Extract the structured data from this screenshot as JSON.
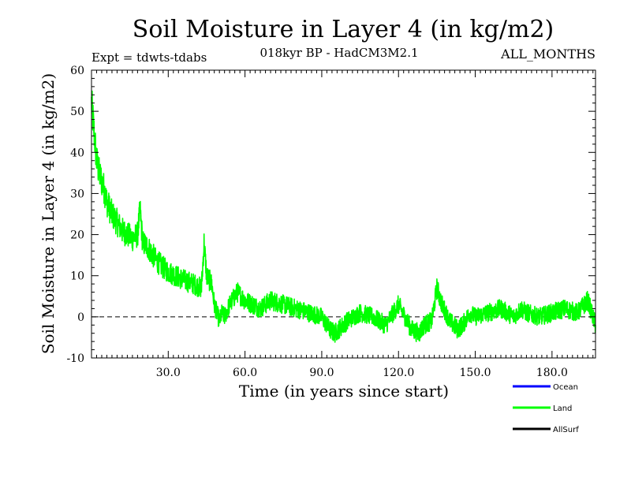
{
  "chart_data": {
    "type": "line",
    "title": "Soil Moisture in Layer 4 (in kg/m2)",
    "subtitle": "018kyr BP - HadCM3M2.1",
    "experiment_label": "Expt = tdwts-tdabs",
    "months_label": "ALL_MONTHS",
    "xlabel": "Time (in years since start)",
    "ylabel": "Soil Moisture in Layer 4 (in kg/m2)",
    "xlim": [
      0,
      197
    ],
    "ylim": [
      -10,
      60
    ],
    "x_ticks": [
      30,
      60,
      90,
      120,
      150,
      180
    ],
    "x_tick_labels": [
      "30.0",
      "60.0",
      "90.0",
      "120.0",
      "150.0",
      "180.0"
    ],
    "y_ticks": [
      -10,
      0,
      10,
      20,
      30,
      40,
      50,
      60
    ],
    "y_tick_labels": [
      "-10",
      "0",
      "10",
      "20",
      "30",
      "40",
      "50",
      "60"
    ],
    "zero_line": 0,
    "legend": [
      {
        "name": "Ocean",
        "color": "#0000ff"
      },
      {
        "name": "Land",
        "color": "#00ff00"
      },
      {
        "name": "AllSurf",
        "color": "#000000"
      }
    ],
    "series": [
      {
        "name": "Land",
        "color": "#00ff00",
        "x": [
          0,
          1,
          2,
          3,
          4,
          5,
          6,
          8,
          10,
          12,
          14,
          16,
          18,
          19,
          20,
          22,
          25,
          28,
          30,
          33,
          36,
          40,
          43,
          44,
          45,
          47,
          48,
          49,
          50,
          51,
          52,
          54,
          57,
          60,
          63,
          66,
          70,
          75,
          80,
          85,
          90,
          93,
          95,
          100,
          105,
          110,
          115,
          120,
          125,
          128,
          130,
          133,
          135,
          137,
          140,
          143,
          145,
          148,
          150,
          155,
          160,
          165,
          168,
          170,
          175,
          180,
          185,
          190,
          194,
          197
        ],
        "values": [
          52,
          45,
          38,
          35,
          33,
          31,
          28,
          25,
          23,
          21,
          20,
          19,
          20,
          26,
          18,
          17,
          14,
          12,
          11,
          10,
          9,
          8,
          7,
          18,
          10,
          8,
          3,
          1,
          -1,
          1,
          0,
          3,
          6,
          4,
          3,
          2,
          4,
          3,
          2,
          1,
          0,
          -3,
          -4,
          -1,
          1,
          0,
          -2,
          3,
          -3,
          -4,
          -2,
          -1,
          7,
          3,
          -1,
          -3,
          -2,
          1,
          0,
          1,
          2,
          0,
          2,
          1,
          0,
          1,
          2,
          1,
          4,
          -2
        ]
      }
    ]
  }
}
